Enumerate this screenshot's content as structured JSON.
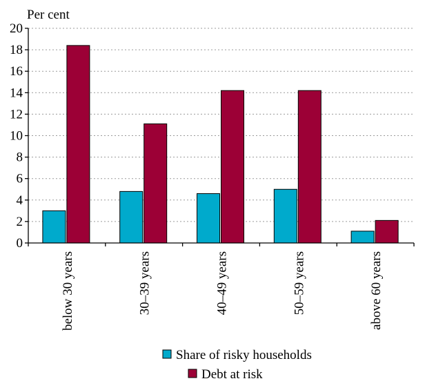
{
  "chart_data": {
    "type": "bar",
    "unit_label": "Per cent",
    "categories": [
      "below 30 years",
      "30–39 years",
      "40–49 years",
      "50–59 years",
      "above 60 years"
    ],
    "series": [
      {
        "name": "Share of risky households",
        "color": "#00aacc",
        "values": [
          3.0,
          4.8,
          4.6,
          5.0,
          1.1
        ]
      },
      {
        "name": "Debt at risk",
        "color": "#9c0036",
        "values": [
          18.4,
          11.1,
          14.2,
          14.2,
          2.1
        ]
      }
    ],
    "ylim": [
      0,
      20
    ],
    "yticks": [
      0,
      2,
      4,
      6,
      8,
      10,
      12,
      14,
      16,
      18,
      20
    ],
    "grid": true,
    "legend_position": "bottom-center"
  }
}
